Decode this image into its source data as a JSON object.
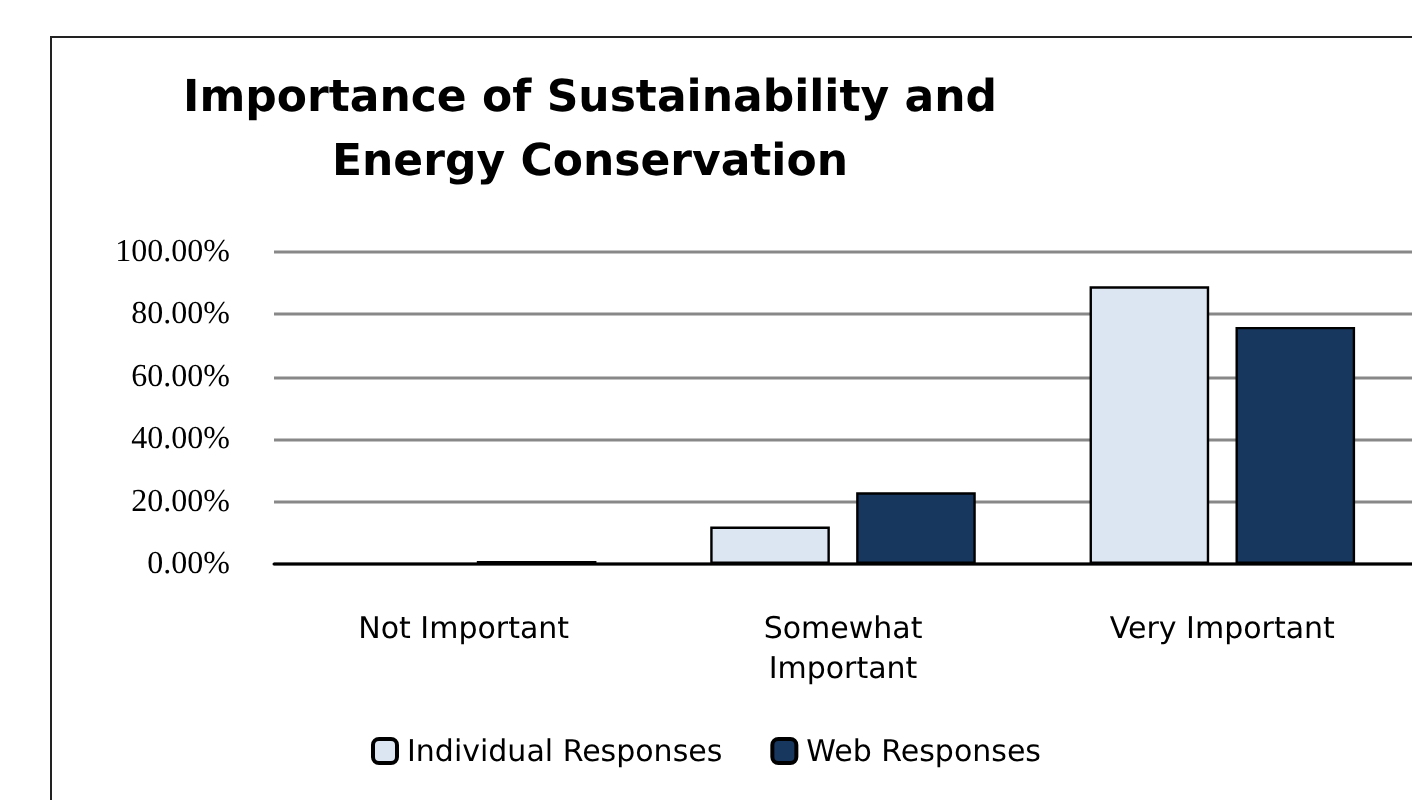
{
  "chart_data": {
    "type": "bar",
    "title": "Importance of Sustainability and\nEnergy Conservation",
    "categories": [
      "Not Important",
      "Somewhat\nImportant",
      "Very Important"
    ],
    "series": [
      {
        "name": "Individual Responses",
        "color": "#dce6f2",
        "values": [
          0,
          12,
          89
        ]
      },
      {
        "name": "Web Responses",
        "color": "#17375e",
        "values": [
          1,
          23,
          76
        ]
      }
    ],
    "ylim": [
      0,
      100
    ],
    "yticks": [
      {
        "value": 0,
        "label": "0.00%"
      },
      {
        "value": 20,
        "label": "20.00%"
      },
      {
        "value": 40,
        "label": "40.00%"
      },
      {
        "value": 60,
        "label": "60.00%"
      },
      {
        "value": 80,
        "label": "80.00%"
      },
      {
        "value": 100,
        "label": "100.00%"
      }
    ],
    "grid": "y",
    "legend": "bottom"
  }
}
